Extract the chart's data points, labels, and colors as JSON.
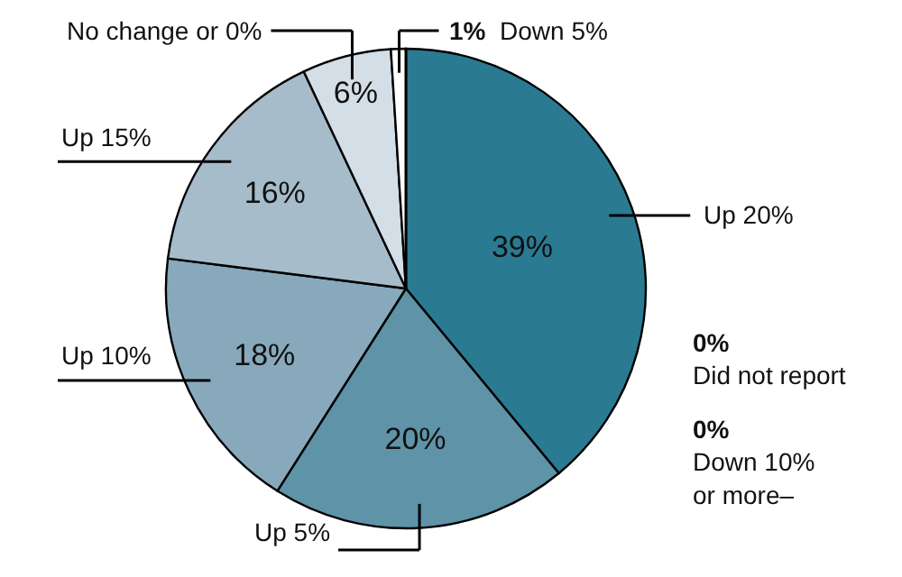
{
  "chart_data": {
    "type": "pie",
    "categories": [
      "Up 20%",
      "Up 5%",
      "Up 10%",
      "Up 15%",
      "No change or 0%",
      "Down 5%",
      "Did not report",
      "Down 10%\nor more–"
    ],
    "values": [
      39,
      20,
      18,
      16,
      6,
      1,
      0,
      0
    ],
    "value_labels": [
      "39%",
      "20%",
      "18%",
      "16%",
      "6%",
      "1%",
      "0%",
      "0%"
    ],
    "colors": [
      "#2a7a92",
      "#5e93a8",
      "#88a9bc",
      "#a6bccb",
      "#d3dee6",
      "#ffffff",
      "#ffffff",
      "#ffffff"
    ],
    "legend": false
  }
}
